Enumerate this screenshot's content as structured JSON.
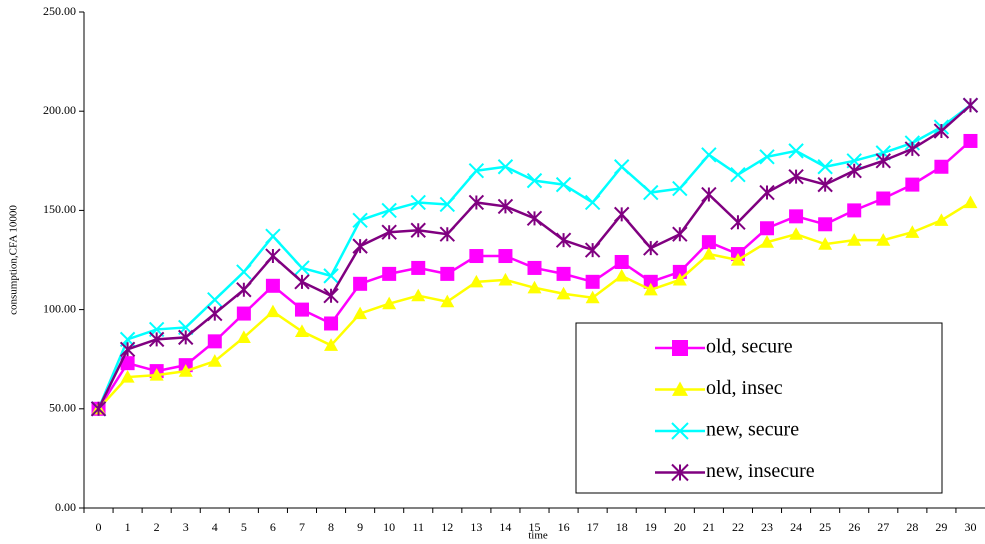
{
  "chart_data": {
    "type": "line",
    "y_label": "consumption,CFA 10000",
    "x_label": "time",
    "categories": [
      "0",
      "1",
      "2",
      "3",
      "4",
      "5",
      "6",
      "7",
      "8",
      "9",
      "10",
      "11",
      "12",
      "13",
      "14",
      "15",
      "16",
      "17",
      "18",
      "19",
      "20",
      "21",
      "22",
      "23",
      "24",
      "25",
      "26",
      "27",
      "28",
      "29",
      "30"
    ],
    "series": [
      {
        "name": "old, secure",
        "color": "#ff00ff",
        "marker": "square",
        "values": [
          50,
          73,
          69,
          72,
          84,
          98,
          112,
          100,
          93,
          113,
          118,
          121,
          118,
          127,
          127,
          121,
          118,
          114,
          124,
          114,
          119,
          134,
          128,
          141,
          147,
          143,
          150,
          156,
          163,
          172,
          185
        ]
      },
      {
        "name": "old, insec",
        "color": "#ffff00",
        "marker": "triangle",
        "values": [
          50,
          66,
          67,
          69,
          74,
          86,
          99,
          89,
          82,
          98,
          103,
          107,
          104,
          114,
          115,
          111,
          108,
          106,
          117,
          110,
          115,
          128,
          125,
          134,
          138,
          133,
          135,
          135,
          139,
          145,
          154
        ]
      },
      {
        "name": "new, secure",
        "color": "#00ffff",
        "marker": "x",
        "values": [
          50,
          85,
          90,
          91,
          105,
          119,
          137,
          121,
          117,
          145,
          150,
          154,
          153,
          170,
          172,
          165,
          163,
          154,
          172,
          159,
          161,
          178,
          168,
          177,
          180,
          172,
          175,
          179,
          184,
          192,
          203
        ]
      },
      {
        "name": "new, insecure",
        "color": "#800080",
        "marker": "asterisk",
        "values": [
          50,
          80,
          85,
          86,
          98,
          110,
          127,
          114,
          107,
          132,
          139,
          140,
          138,
          154,
          152,
          146,
          135,
          130,
          148,
          131,
          138,
          158,
          144,
          159,
          167,
          163,
          170,
          175,
          181,
          190,
          203
        ]
      }
    ],
    "ylim": [
      0,
      250
    ],
    "yticks": [
      {
        "value": 0,
        "label": "0.00"
      },
      {
        "value": 50,
        "label": "50.00"
      },
      {
        "value": 100,
        "label": "100.00"
      },
      {
        "value": 150,
        "label": "150.00"
      },
      {
        "value": 200,
        "label": "200.00"
      },
      {
        "value": 250,
        "label": "250.00"
      }
    ],
    "grid": false,
    "legend": "bottom-right"
  }
}
